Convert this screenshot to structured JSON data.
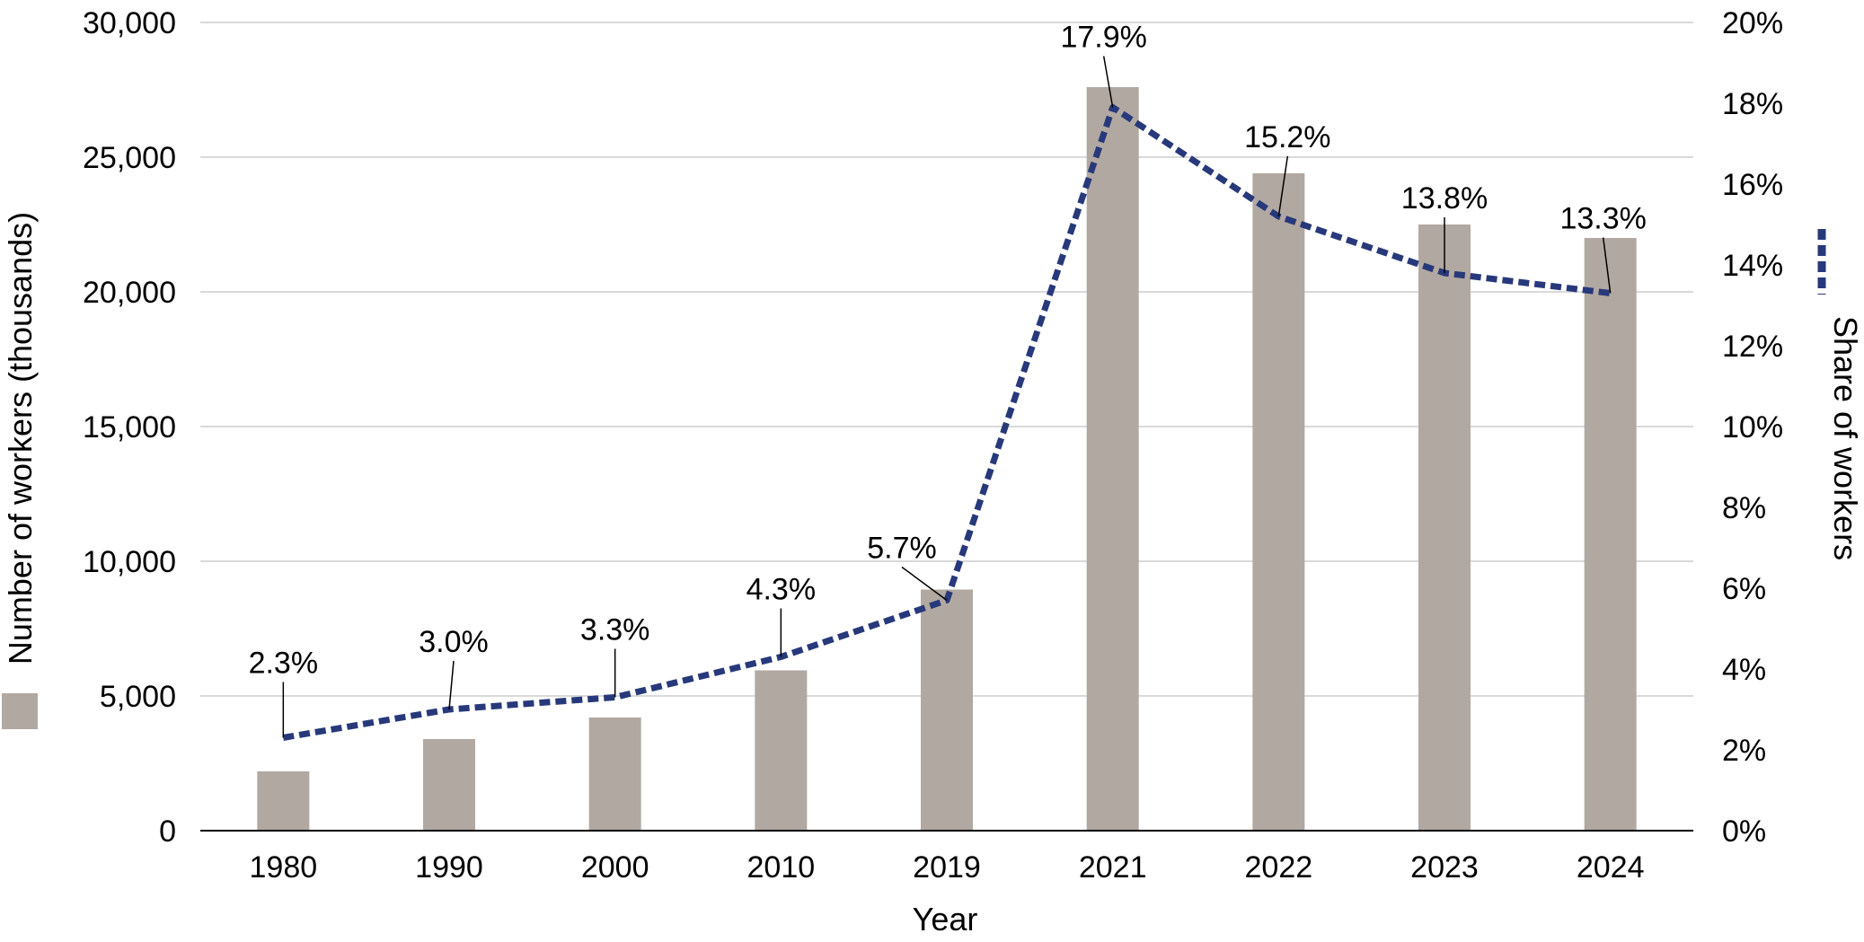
{
  "chart_data": {
    "type": "bar",
    "categories": [
      "1980",
      "1990",
      "2000",
      "2010",
      "2019",
      "2021",
      "2022",
      "2023",
      "2024"
    ],
    "series": [
      {
        "name": "Number of workers (thousands)",
        "type": "bar",
        "axis": "left",
        "values": [
          2200,
          3400,
          4200,
          5950,
          8950,
          27600,
          24400,
          22500,
          22000
        ],
        "color": "#b1a8a2"
      },
      {
        "name": "Share of workers",
        "type": "line",
        "axis": "right",
        "values": [
          2.3,
          3.0,
          3.3,
          4.3,
          5.7,
          17.9,
          15.2,
          13.8,
          13.3
        ],
        "labels": [
          "2.3%",
          "3.0%",
          "3.3%",
          "4.3%",
          "5.7%",
          "17.9%",
          "15.2%",
          "13.8%",
          "13.3%"
        ],
        "color": "#27397a",
        "style": "dashed"
      }
    ],
    "xlabel": "Year",
    "ylabel": "Number of workers (thousands)",
    "y2label": "Share of workers",
    "ylim": [
      0,
      30000
    ],
    "y2lim": [
      0,
      20
    ],
    "yticks": [
      "0",
      "5,000",
      "10,000",
      "15,000",
      "20,000",
      "25,000",
      "30,000"
    ],
    "y2ticks": [
      "0%",
      "2%",
      "4%",
      "6%",
      "8%",
      "10%",
      "12%",
      "14%",
      "16%",
      "18%",
      "20%"
    ],
    "grid": true,
    "legend": "beside axis titles",
    "colors": {
      "bar": "#b1a8a2",
      "line": "#27397a",
      "grid": "#d9d9d9",
      "axis": "#000000"
    }
  }
}
